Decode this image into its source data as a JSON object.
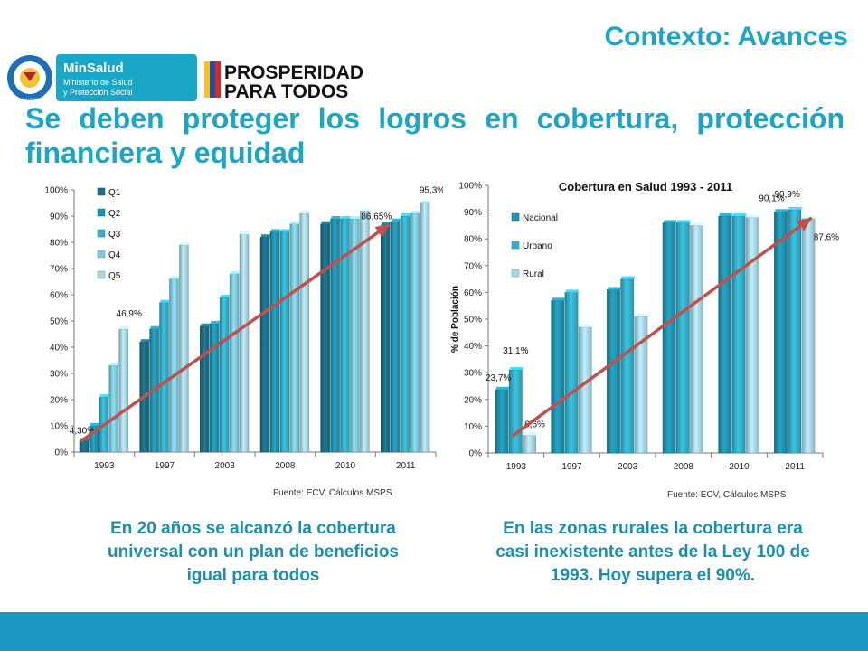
{
  "header": {
    "title": "Contexto: Avances",
    "headline": "Se deben proteger los logros en cobertura, protección financiera y equidad"
  },
  "logos": {
    "minsalud_name": "MinSalud",
    "minsalud_sub1": "Ministerio de Salud",
    "minsalud_sub2": "y Protección Social",
    "prosperidad_line1": "PROSPERIDAD",
    "prosperidad_line2": "PARA TODOS",
    "seal_text": "REPÚBLICA DE COLOMBIA"
  },
  "colors": {
    "accent": "#1aa6c6",
    "footer": "#1a97c0",
    "trend_arrow": "#c0504d",
    "q1": "#1c6f86",
    "q2": "#2193b0",
    "q3": "#35b0cc",
    "q4": "#7fcbdd",
    "q5": "#a9d6e4"
  },
  "captions": {
    "left": [
      "En 20 años se alcanzó la cobertura",
      "universal con un plan de beneficios",
      "igual para todos"
    ],
    "right": [
      "En las zonas rurales la cobertura era",
      "casi inexistente antes de la Ley 100 de",
      "1993.  Hoy supera el 90%."
    ]
  },
  "chart_data": [
    {
      "type": "bar",
      "title": "",
      "xlabel": "",
      "ylabel": "",
      "categories": [
        "1993",
        "1997",
        "2003",
        "2008",
        "2010",
        "2011"
      ],
      "series": [
        {
          "name": "Q1",
          "values": [
            4.3,
            42,
            48,
            82,
            87,
            86.65
          ]
        },
        {
          "name": "Q2",
          "values": [
            10,
            47,
            49,
            84,
            89,
            88
          ]
        },
        {
          "name": "Q3",
          "values": [
            21,
            57,
            59,
            84,
            89,
            90
          ]
        },
        {
          "name": "Q4",
          "values": [
            33,
            66,
            68,
            87,
            89,
            91
          ]
        },
        {
          "name": "Q5",
          "values": [
            46.9,
            79,
            83,
            91,
            92,
            95.3
          ]
        }
      ],
      "yticks": [
        "0%",
        "10%",
        "20%",
        "30%",
        "40%",
        "50%",
        "60%",
        "70%",
        "80%",
        "90%",
        "100%"
      ],
      "ylim": [
        0,
        100
      ],
      "legend": "top-left",
      "annotations": [
        {
          "text": "4,30%",
          "category": "1993",
          "series": "Q1"
        },
        {
          "text": "46,9%",
          "category": "1993",
          "series": "Q5"
        },
        {
          "text": "86,65%",
          "category": "2011",
          "series": "Q1"
        },
        {
          "text": "95,3%",
          "category": "2011",
          "series": "Q5"
        }
      ],
      "trend": {
        "from": {
          "category": "1993",
          "value": 4.3
        },
        "to": {
          "category": "2011",
          "value": 86.65
        }
      },
      "source": "Fuente: ECV, Cálculos MSPS"
    },
    {
      "type": "bar",
      "title": "Cobertura en Salud 1993 - 2011",
      "xlabel": "",
      "ylabel": "% de Población",
      "categories": [
        "1993",
        "1997",
        "2003",
        "2008",
        "2010",
        "2011"
      ],
      "series": [
        {
          "name": "Nacional",
          "values": [
            23.7,
            57,
            61,
            86,
            88.5,
            90.1
          ]
        },
        {
          "name": "Urbano",
          "values": [
            31.1,
            60,
            65,
            86,
            88.5,
            90.9
          ]
        },
        {
          "name": "Rural",
          "values": [
            6.6,
            47,
            51,
            85,
            88,
            87.6
          ]
        }
      ],
      "yticks": [
        "0%",
        "10%",
        "20%",
        "30%",
        "40%",
        "50%",
        "60%",
        "70%",
        "80%",
        "90%",
        "100%"
      ],
      "ylim": [
        0,
        100
      ],
      "legend": "top-left",
      "annotations": [
        {
          "text": "23,7%",
          "category": "1993",
          "series": "Nacional"
        },
        {
          "text": "31,1%",
          "category": "1993",
          "series": "Urbano"
        },
        {
          "text": "6,6%",
          "category": "1993",
          "series": "Rural"
        },
        {
          "text": "90,1%",
          "category": "2011",
          "series": "Nacional"
        },
        {
          "text": "90,9%",
          "category": "2011",
          "series": "Urbano"
        },
        {
          "text": "87,6%",
          "category": "2011",
          "series": "Rural"
        }
      ],
      "trend": {
        "from": {
          "category": "1993",
          "value": 6.6
        },
        "to": {
          "category": "2011",
          "value": 87.6
        }
      },
      "source": "Fuente: ECV, Cálculos MSPS"
    }
  ]
}
